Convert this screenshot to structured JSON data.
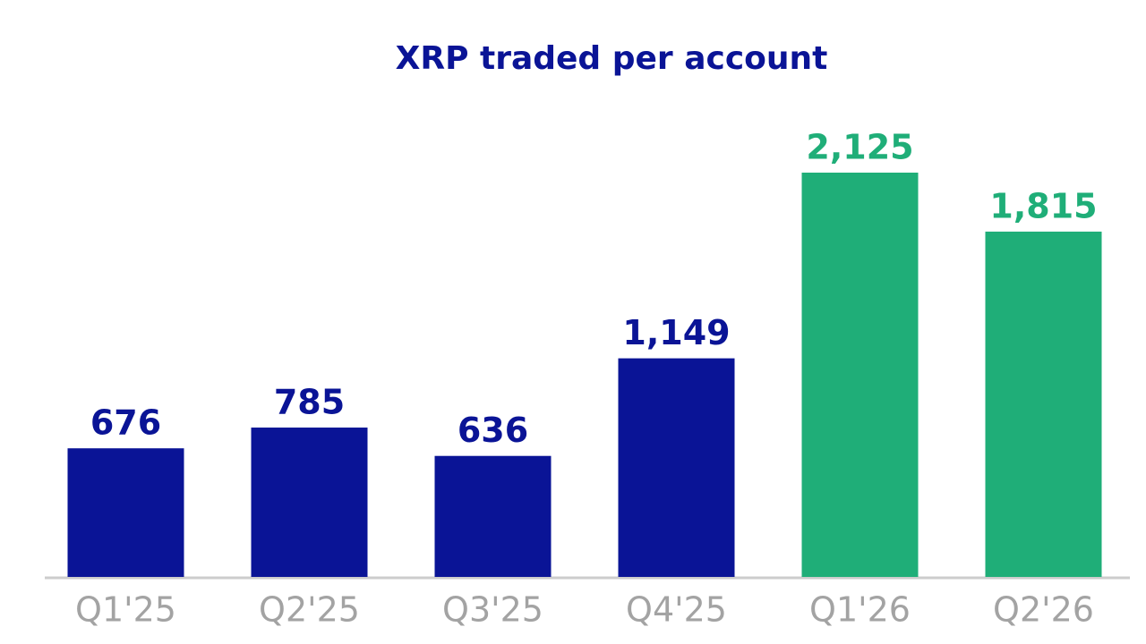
{
  "chart_data": {
    "type": "bar",
    "title": "XRP traded per account",
    "categories": [
      "Q1'25",
      "Q2'25",
      "Q3'25",
      "Q4'25",
      "Q1'26",
      "Q2'26"
    ],
    "values": [
      676,
      785,
      636,
      1149,
      2125,
      1815
    ],
    "value_labels": [
      "676",
      "785",
      "636",
      "1,149",
      "2,125",
      "1,815"
    ],
    "colors": [
      "#0a1496",
      "#0a1496",
      "#0a1496",
      "#0a1496",
      "#1fae78",
      "#1fae78"
    ]
  }
}
